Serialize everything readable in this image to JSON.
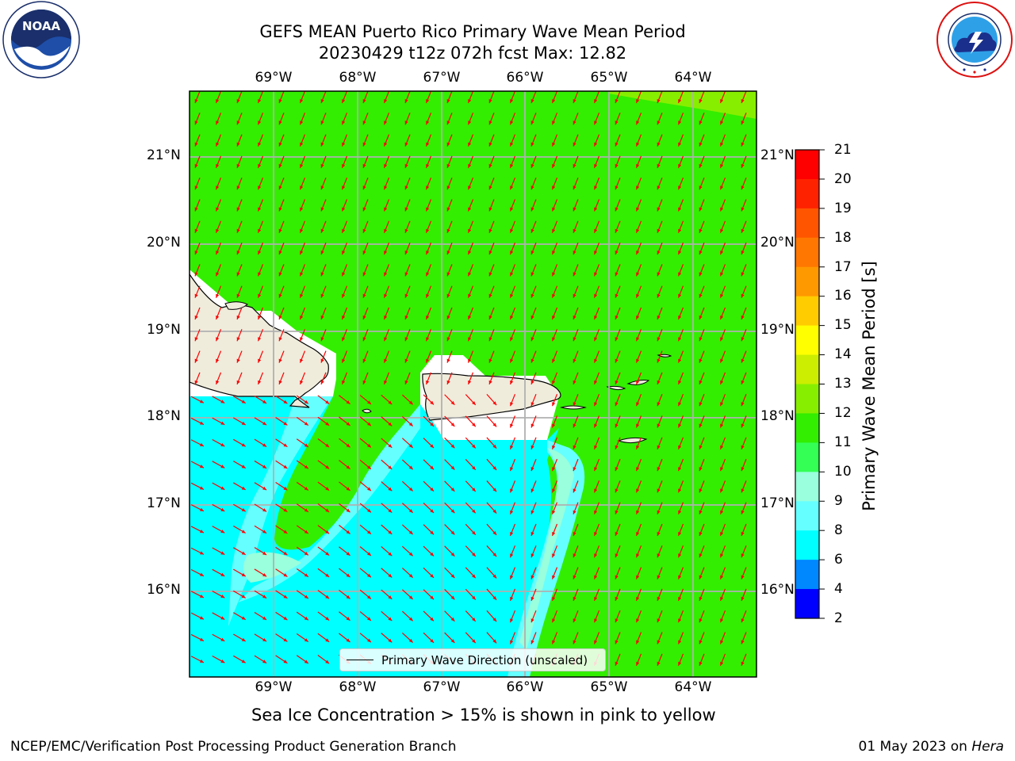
{
  "header": {
    "title_line1": "GEFS MEAN Puerto Rico Primary Wave Mean Period",
    "title_line2": "20230429 t12z 072h fcst   Max: 12.82"
  },
  "logos": {
    "left": {
      "name": "noaa-logo",
      "text": "NOAA",
      "ring_text": "NATIONAL OCEANIC AND ATMOSPHERIC ADMINISTRATION · U.S. DEPARTMENT OF COMMERCE"
    },
    "right": {
      "name": "nws-logo",
      "ring_text": "NATIONAL WEATHER SERVICE"
    }
  },
  "map": {
    "lon_labels": [
      "69°W",
      "68°W",
      "67°W",
      "66°W",
      "65°W",
      "64°W"
    ],
    "lat_labels": [
      "21°N",
      "20°N",
      "19°N",
      "18°N",
      "17°N",
      "16°N"
    ],
    "legend_label": "Primary Wave Direction (unscaled)",
    "colors": {
      "land": "#efecdc",
      "green": "#33ee00",
      "cyan": "#00ffff",
      "light_cyan": "#66ffff",
      "pale_cyan": "#99ffdd",
      "arrow": "#ff0000",
      "grid": "#b0b0b0"
    }
  },
  "colorbar": {
    "title": "Primary Wave Mean Period [s]",
    "ticks": [
      "21",
      "20",
      "19",
      "18",
      "17",
      "16",
      "15",
      "14",
      "13",
      "12",
      "11",
      "10",
      "9",
      "8",
      "6",
      "4",
      "2"
    ],
    "colors": [
      "#ff0000",
      "#ff2200",
      "#ff5500",
      "#ff7700",
      "#ff9900",
      "#ffcc00",
      "#ffff00",
      "#ccee00",
      "#88ee00",
      "#33ee00",
      "#33ff55",
      "#99ffdd",
      "#66ffff",
      "#00ffff",
      "#0088ff",
      "#0000ff"
    ]
  },
  "footer": {
    "note": "Sea Ice Concentration > 15% is shown in pink to yellow",
    "left": "NCEP/EMC/Verification Post Processing Product Generation Branch",
    "right_prefix": "01 May 2023 on ",
    "right_host": "Hera"
  }
}
